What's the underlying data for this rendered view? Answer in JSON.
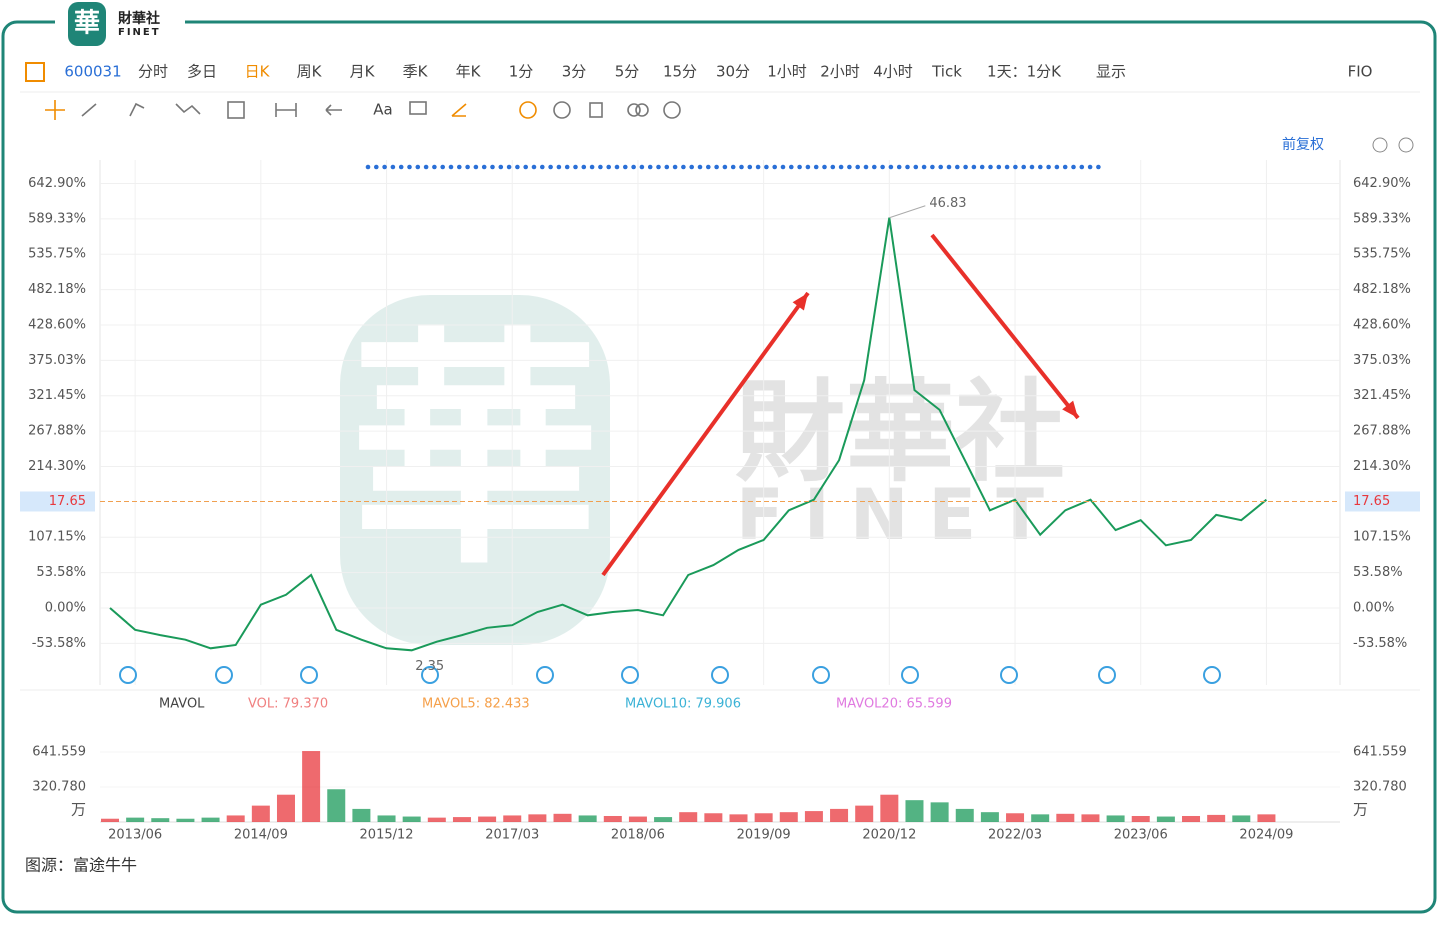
{
  "header": {
    "logo_mark": "華",
    "logo_name": "財華社",
    "logo_sub": "FINET"
  },
  "toolbar": {
    "row1": [
      "600031",
      "分时",
      "多日",
      "日K",
      "周K",
      "月K",
      "季K",
      "年K",
      "1分",
      "3分",
      "5分",
      "15分",
      "30分",
      "1小时",
      "2小时",
      "4小时",
      "Tick",
      "1天：1分K",
      "显示",
      "FIO"
    ],
    "row2": [
      "Aa"
    ],
    "adjust": "前复权"
  },
  "watermark": {
    "name": "財華社",
    "sub": "FINET",
    "mark": "華"
  },
  "chart_data": {
    "type": "line",
    "categories": [
      null,
      "2013/06",
      null,
      null,
      null,
      null,
      "2014/09",
      null,
      null,
      null,
      null,
      "2015/12",
      null,
      null,
      null,
      null,
      "2017/03",
      null,
      null,
      null,
      null,
      "2018/06",
      null,
      null,
      null,
      null,
      "2019/09",
      null,
      null,
      null,
      null,
      "2020/12",
      null,
      null,
      null,
      null,
      "2022/03",
      null,
      null,
      null,
      null,
      "2023/06",
      null,
      null,
      null,
      null,
      "2024/09"
    ],
    "series": [
      {
        "name": "600031",
        "color": "#1a9a5a",
        "values": [
          0,
          -33,
          -41,
          -48,
          -61,
          -56,
          5,
          20,
          50,
          -33,
          -48,
          -61,
          -64,
          -51,
          -41,
          -30,
          -26,
          -6,
          5,
          -11,
          -6,
          -3,
          -11,
          50,
          65,
          88,
          103,
          148,
          164,
          224,
          345,
          591,
          330,
          300,
          224,
          148,
          164,
          111,
          148,
          164,
          118,
          133,
          95,
          103,
          141,
          133,
          164
        ]
      }
    ],
    "up_color": "#e8383d",
    "down_color": "#1a9a5a",
    "ylim": [
      -116.6,
      678.4
    ],
    "yticks": [
      {
        "value": 642.9,
        "label": "642.90%"
      },
      {
        "value": 589.33,
        "label": "589.33%"
      },
      {
        "value": 535.75,
        "label": "535.75%"
      },
      {
        "value": 482.18,
        "label": "482.18%"
      },
      {
        "value": 428.6,
        "label": "428.60%"
      },
      {
        "value": 375.03,
        "label": "375.03%"
      },
      {
        "value": 321.45,
        "label": "321.45%"
      },
      {
        "value": 267.88,
        "label": "267.88%"
      },
      {
        "value": 214.3,
        "label": "214.30%"
      },
      {
        "value": 107.15,
        "label": "107.15%"
      },
      {
        "value": 53.58,
        "label": "53.58%"
      },
      {
        "value": 0,
        "label": "0.00%"
      },
      {
        "value": -53.58,
        "label": "-53.58%"
      }
    ],
    "grid": true,
    "high": 46.83,
    "low": 2.35,
    "last": 17.65,
    "volume": {
      "indicator": "MAVOL",
      "legend": [
        {
          "name": "VOL: 79.370",
          "color": "#f08080"
        },
        {
          "name": "MAVOL5: 82.433",
          "color": "#f5a04a"
        },
        {
          "name": "MAVOL10: 79.906",
          "color": "#3bb2d6"
        },
        {
          "name": "MAVOL20: 65.599",
          "color": "#e07ae0"
        }
      ],
      "unit": "万",
      "ylim": [
        0,
        916
      ],
      "yticks": [
        641.559,
        {
          "value": 320.78,
          "label": "320.780"
        }
      ],
      "values": [
        30,
        40,
        35,
        30,
        40,
        60,
        150,
        250,
        650,
        300,
        120,
        60,
        50,
        40,
        45,
        50,
        60,
        70,
        75,
        60,
        55,
        50,
        45,
        90,
        80,
        70,
        80,
        90,
        100,
        120,
        150,
        250,
        200,
        180,
        120,
        90,
        80,
        70,
        75,
        70,
        60,
        55,
        50,
        55,
        65,
        60,
        70
      ]
    }
  },
  "source": "图源：富途牛牛"
}
